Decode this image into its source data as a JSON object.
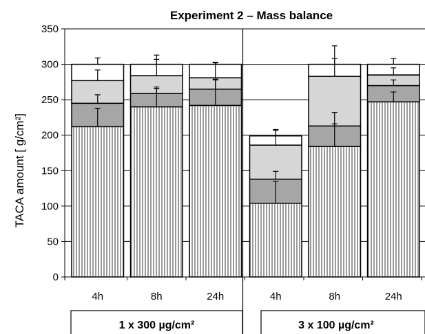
{
  "chart_data": {
    "type": "bar",
    "stacked": true,
    "title": "Experiment 2 – Mass balance",
    "ylabel": "TACA amount [ g/cm²]",
    "ylim": [
      0,
      350
    ],
    "yticks": [
      0,
      50,
      100,
      150,
      200,
      250,
      300,
      350
    ],
    "grid": true,
    "categories": [
      "4h",
      "8h",
      "24h",
      "4h",
      "8h",
      "24h"
    ],
    "groups": [
      {
        "label": "1 x 300 µg/cm²",
        "category_indices": [
          0,
          1,
          2
        ]
      },
      {
        "label": "3 x 100  µg/cm²",
        "category_indices": [
          3,
          4,
          5
        ]
      }
    ],
    "series": [
      {
        "values": [
          212,
          240,
          242,
          104,
          184,
          247
        ],
        "color": "#b4b4b4",
        "pattern": "vertical-stripes"
      },
      {
        "values": [
          33,
          19,
          23,
          34,
          29,
          23
        ],
        "color": "#a6a6a6"
      },
      {
        "values": [
          32,
          25,
          16,
          48,
          70,
          15
        ],
        "color": "#d6d6d6"
      },
      {
        "values": [
          23,
          16,
          19,
          13,
          17,
          15
        ],
        "color": "#ffffff"
      }
    ],
    "error_bars": [
      {
        "series": 0,
        "upper": [
          26,
          26,
          37,
          31,
          48,
          14
        ]
      },
      {
        "series": 1,
        "upper": [
          12,
          9,
          13,
          11,
          3,
          8
        ]
      },
      {
        "series": 2,
        "upper": [
          15,
          23,
          21,
          22,
          25,
          10
        ]
      },
      {
        "series": 3,
        "upper": [
          9,
          13,
          3,
          8,
          26,
          8
        ]
      }
    ]
  }
}
